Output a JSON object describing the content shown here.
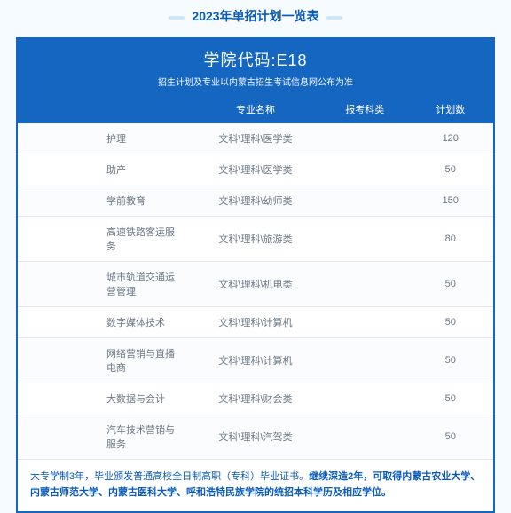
{
  "page_title": "2023年单招计划一览表",
  "header": {
    "title": "学院代码:E18",
    "subtitle": "招生计划及专业以内蒙古招生考试信息网公布为准"
  },
  "table": {
    "columns": [
      "",
      "专业名称",
      "报考科类",
      "计划数"
    ],
    "rows": [
      {
        "name": "护理",
        "subject": "文科\\理科\\医学类",
        "quota": "120"
      },
      {
        "name": "助产",
        "subject": "文科\\理科\\医学类",
        "quota": "50"
      },
      {
        "name": "学前教育",
        "subject": "文科\\理科\\幼师类",
        "quota": "150"
      },
      {
        "name": "高速铁路客运服务",
        "subject": "文科\\理科\\旅游类",
        "quota": "80"
      },
      {
        "name": "城市轨道交通运营管理",
        "subject": "文科\\理科\\机电类",
        "quota": "50"
      },
      {
        "name": "数字媒体技术",
        "subject": "文科\\理科\\计算机",
        "quota": "50"
      },
      {
        "name": "网络营销与直播电商",
        "subject": "文科\\理科\\计算机",
        "quota": "50"
      },
      {
        "name": "大数据与会计",
        "subject": "文科\\理科\\财会类",
        "quota": "50"
      },
      {
        "name": "汽车技术营销与服务",
        "subject": "文科\\理科\\汽驾类",
        "quota": "50"
      }
    ]
  },
  "note": {
    "prefix": "大专学制3年，毕业颁发普通高校全日制高职（专科）毕业证书。",
    "emphasis": "继续深造2年，可取得内蒙古农业大学、内蒙古师范大学、内蒙古医科大学、呼和浩特民族学院的统招本科学历及相应学位。"
  },
  "colors": {
    "brand": "#1566c0",
    "page_bg": "#f5fbff",
    "text_muted": "#6b7785"
  }
}
